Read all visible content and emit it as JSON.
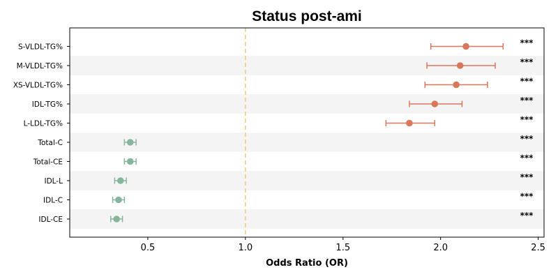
{
  "chart_data": {
    "type": "forest",
    "title": "Status post-ami",
    "xlabel": "Odds Ratio (OR)",
    "xlim": [
      0.1,
      2.53
    ],
    "xticks": [
      0.5,
      1.0,
      1.5,
      2.0,
      2.5
    ],
    "xtick_labels": [
      "0.5",
      "1.0",
      "1.5",
      "2.0",
      "2.5"
    ],
    "reference_line": 1.0,
    "colors": {
      "high": "#d9775a",
      "low": "#85b59b",
      "reference": "#f5c77e",
      "band": "#f4f4f4"
    },
    "rows": [
      {
        "label": "S-VLDL-TG%",
        "or": 2.13,
        "lower": 1.95,
        "upper": 2.32,
        "sig": "***"
      },
      {
        "label": "M-VLDL-TG%",
        "or": 2.1,
        "lower": 1.93,
        "upper": 2.28,
        "sig": "***"
      },
      {
        "label": "XS-VLDL-TG%",
        "or": 2.08,
        "lower": 1.92,
        "upper": 2.24,
        "sig": "***"
      },
      {
        "label": "IDL-TG%",
        "or": 1.97,
        "lower": 1.84,
        "upper": 2.11,
        "sig": "***"
      },
      {
        "label": "L-LDL-TG%",
        "or": 1.84,
        "lower": 1.72,
        "upper": 1.97,
        "sig": "***"
      },
      {
        "label": "Total-C",
        "or": 0.41,
        "lower": 0.38,
        "upper": 0.44,
        "sig": "***"
      },
      {
        "label": "Total-CE",
        "or": 0.41,
        "lower": 0.38,
        "upper": 0.44,
        "sig": "***"
      },
      {
        "label": "IDL-L",
        "or": 0.36,
        "lower": 0.33,
        "upper": 0.39,
        "sig": "***"
      },
      {
        "label": "IDL-C",
        "or": 0.35,
        "lower": 0.32,
        "upper": 0.38,
        "sig": "***"
      },
      {
        "label": "IDL-CE",
        "or": 0.34,
        "lower": 0.31,
        "upper": 0.37,
        "sig": "***"
      }
    ]
  }
}
